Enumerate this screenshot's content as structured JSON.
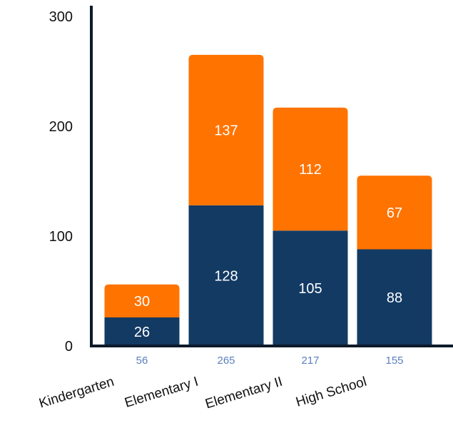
{
  "chart_data": {
    "type": "bar",
    "stacked": true,
    "categories": [
      "Kindergarten",
      "Elementary I",
      "Elementary II",
      "High School"
    ],
    "series": [
      {
        "values": [
          26,
          128,
          105,
          88
        ],
        "color": "#123a63"
      },
      {
        "values": [
          30,
          137,
          112,
          67
        ],
        "color": "#ff7300"
      }
    ],
    "totals": [
      "56",
      "265",
      "217",
      "155"
    ],
    "yticks": [
      "0",
      "100",
      "200",
      "300"
    ],
    "ylim": [
      0,
      300
    ],
    "grid": false,
    "total_color": "#5b7fbf",
    "axis_color": "#0d1a2b"
  }
}
